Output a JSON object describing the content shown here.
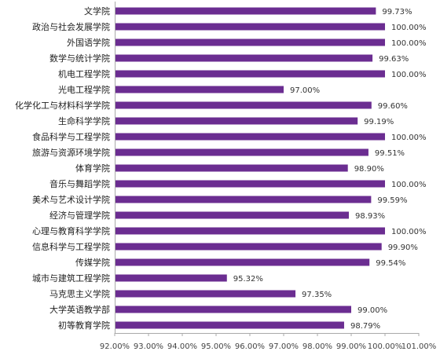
{
  "chart_data": {
    "type": "bar",
    "orientation": "horizontal",
    "categories": [
      "文学院",
      "政治与社会发展学院",
      "外国语学院",
      "数学与统计学院",
      "机电工程学院",
      "光电工程学院",
      "化学化工与材料科学学院",
      "生命科学学院",
      "食品科学与工程学院",
      "旅游与资源环境学院",
      "体育学院",
      "音乐与舞蹈学院",
      "美术与艺术设计学院",
      "经济与管理学院",
      "心理与教育科学学院",
      "信息科学与工程学院",
      "传媒学院",
      "城市与建筑工程学院",
      "马克思主义学院",
      "大学英语教学部",
      "初等教育学院"
    ],
    "values": [
      99.73,
      100.0,
      100.0,
      99.63,
      100.0,
      97.0,
      99.6,
      99.19,
      100.0,
      99.51,
      98.9,
      100.0,
      99.59,
      98.93,
      100.0,
      99.9,
      99.54,
      95.32,
      97.35,
      99.0,
      98.79
    ],
    "value_labels": [
      "99.73%",
      "100.00%",
      "100.00%",
      "99.63%",
      "100.00%",
      "97.00%",
      "99.60%",
      "99.19%",
      "100.00%",
      "99.51%",
      "98.90%",
      "100.00%",
      "99.59%",
      "98.93%",
      "100.00%",
      "99.90%",
      "99.54%",
      "95.32%",
      "97.35%",
      "99.00%",
      "98.79%"
    ],
    "xlim": [
      92.0,
      101.0
    ],
    "x_ticks": [
      92,
      93,
      94,
      95,
      96,
      97,
      98,
      99,
      100,
      101
    ],
    "x_tick_labels": [
      "92.00%",
      "93.00%",
      "94.00%",
      "95.00%",
      "96.00%",
      "97.00%",
      "98.00%",
      "99.00%",
      "100.00%",
      "101.00%"
    ],
    "title": "",
    "xlabel": "",
    "ylabel": "",
    "grid": false,
    "legend": "none",
    "bar_color": "#6b2d91",
    "axis_color": "#aaaaaa"
  }
}
